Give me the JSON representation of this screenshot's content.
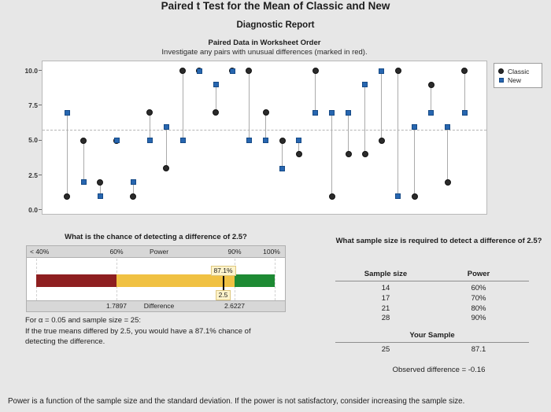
{
  "header": {
    "title": "Paired t Test for the Mean of Classic and New",
    "subtitle": "Diagnostic Report"
  },
  "chart_data": [
    {
      "type": "scatter",
      "title": "Paired Data in Worksheet Order",
      "subtitle": "Investigate any pairs with unusual differences (marked in red).",
      "ylim": [
        0,
        10
      ],
      "ytick_labels": [
        "0.0",
        "2.5",
        "5.0",
        "7.5",
        "10.0"
      ],
      "reference_line": 5.8,
      "legend_position": "right",
      "grid": false,
      "series": [
        {
          "name": "Classic",
          "marker": "circle",
          "color": "#2b2b2b",
          "values": [
            1,
            5,
            2,
            5,
            1,
            7,
            3,
            10,
            10,
            7,
            10,
            10,
            7,
            5,
            4,
            10,
            1,
            4,
            4,
            5,
            10,
            1,
            9,
            2,
            10
          ]
        },
        {
          "name": "New",
          "marker": "square",
          "color": "#2766b0",
          "values": [
            7,
            2,
            1,
            5,
            2,
            5,
            6,
            5,
            10,
            9,
            10,
            5,
            5,
            3,
            5,
            7,
            7,
            7,
            9,
            10,
            1,
            6,
            7,
            6,
            7
          ]
        }
      ]
    },
    {
      "type": "bar",
      "title": "What is the chance of detecting a difference of 2.5?",
      "scale_labels": [
        "< 40%",
        "60%",
        "Power",
        "90%",
        "100%"
      ],
      "scale_ticks": [
        40,
        60,
        90,
        100
      ],
      "segments": [
        {
          "from": 40,
          "to": 60,
          "color": "#8e1f20",
          "label": "low"
        },
        {
          "from": 60,
          "to": 90,
          "color": "#f0c143",
          "label": "medium"
        },
        {
          "from": 90,
          "to": 100,
          "color": "#1d8a33",
          "label": "high"
        }
      ],
      "marker_value": 87.1,
      "marker_label": "87.1%",
      "marker_difference_label": "2.5",
      "bottom_labels": [
        "1.7897",
        "Difference",
        "2.6227"
      ]
    },
    {
      "type": "table",
      "title": "What sample size is required to detect a difference of 2.5?",
      "columns": [
        "Sample size",
        "Power"
      ],
      "rows": [
        [
          "14",
          "60%"
        ],
        [
          "17",
          "70%"
        ],
        [
          "21",
          "80%"
        ],
        [
          "28",
          "90%"
        ]
      ],
      "your_sample_label": "Your Sample",
      "your_sample": [
        "25",
        "87.1"
      ],
      "observed_difference": "Observed difference = -0.16"
    }
  ],
  "caption": {
    "lines": [
      "For α = 0.05 and sample size = 25:",
      "If the true means differed by 2.5, you would have a 87.1% chance of",
      "detecting the difference."
    ]
  },
  "footer": {
    "text": "Power is a function of the sample size and the standard deviation. If the power is not satisfactory, consider increasing the sample size."
  }
}
